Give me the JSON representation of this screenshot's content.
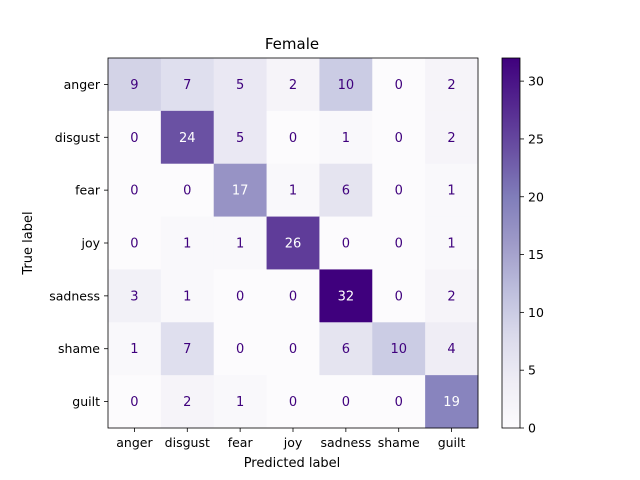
{
  "chart_data": {
    "type": "heatmap",
    "title": "Female",
    "xlabel": "Predicted label",
    "ylabel": "True label",
    "x_categories": [
      "anger",
      "disgust",
      "fear",
      "joy",
      "sadness",
      "shame",
      "guilt"
    ],
    "y_categories": [
      "anger",
      "disgust",
      "fear",
      "joy",
      "sadness",
      "shame",
      "guilt"
    ],
    "values": [
      [
        9,
        7,
        5,
        2,
        10,
        0,
        2
      ],
      [
        0,
        24,
        5,
        0,
        1,
        0,
        2
      ],
      [
        0,
        0,
        17,
        1,
        6,
        0,
        1
      ],
      [
        0,
        1,
        1,
        26,
        0,
        0,
        1
      ],
      [
        3,
        1,
        0,
        0,
        32,
        0,
        2
      ],
      [
        1,
        7,
        0,
        0,
        6,
        10,
        4
      ],
      [
        0,
        2,
        1,
        0,
        0,
        0,
        19
      ]
    ],
    "colormap": "Purples",
    "colormap_low": "#fcfbfd",
    "colormap_high": "#3f007d",
    "text_color_dark": "#3f007d",
    "text_color_light": "#ffffff",
    "colorbar": {
      "range": [
        0,
        32
      ],
      "ticks": [
        "0",
        "5",
        "10",
        "15",
        "20",
        "25",
        "30"
      ]
    }
  }
}
